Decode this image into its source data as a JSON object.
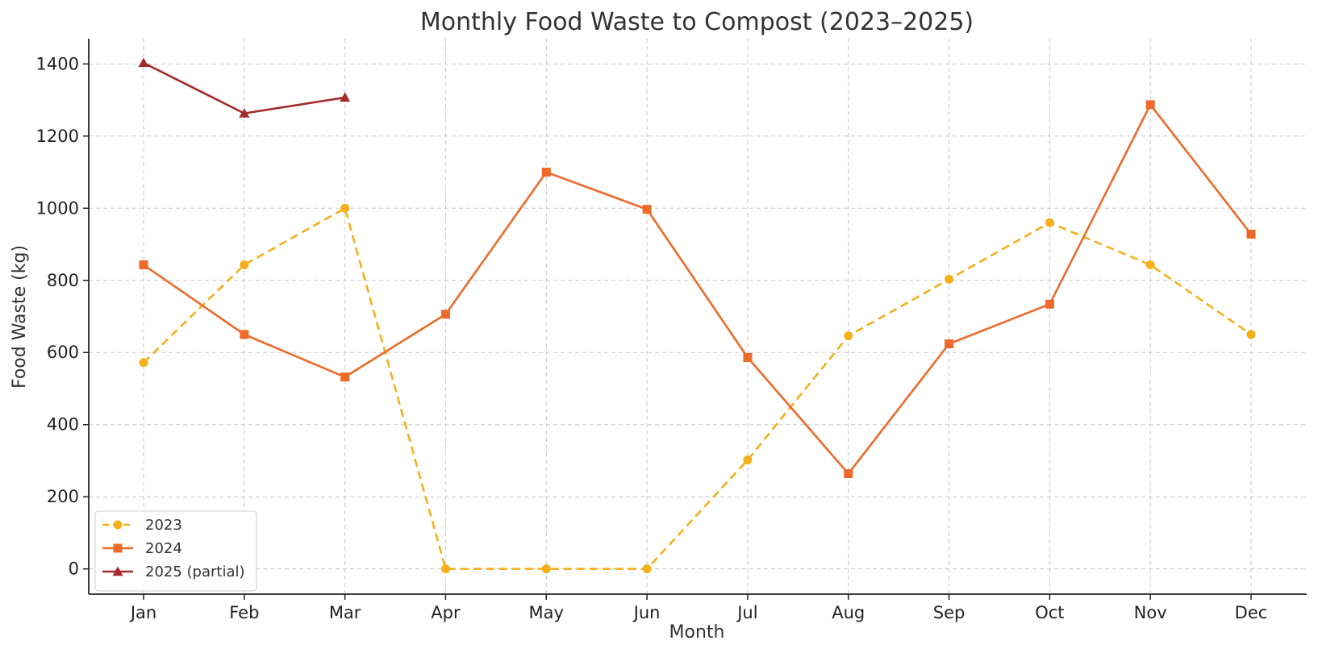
{
  "chart_data": {
    "type": "line",
    "title": "Monthly Food Waste to Compost (2023–2025)",
    "xlabel": "Month",
    "ylabel": "Food Waste (kg)",
    "categories": [
      "Jan",
      "Feb",
      "Mar",
      "Apr",
      "May",
      "Jun",
      "Jul",
      "Aug",
      "Sep",
      "Oct",
      "Nov",
      "Dec"
    ],
    "ylim": [
      -70,
      1470
    ],
    "yticks": [
      0,
      200,
      400,
      600,
      800,
      1000,
      1200,
      1400
    ],
    "grid": true,
    "legend_position": "bottom-left",
    "series": [
      {
        "name": "2023",
        "color": "#F5B01A",
        "line_style": "dashed",
        "marker": "circle",
        "values": [
          572,
          843,
          1000,
          0,
          0,
          0,
          302,
          646,
          803,
          960,
          843,
          650
        ]
      },
      {
        "name": "2024",
        "color": "#EE6A2A",
        "line_style": "solid",
        "marker": "square",
        "values": [
          843,
          650,
          532,
          706,
          1100,
          997,
          586,
          264,
          624,
          734,
          1287,
          928
        ]
      },
      {
        "name": "2025 (partial)",
        "color": "#A52A2A",
        "line_style": "solid",
        "marker": "triangle",
        "values": [
          1403,
          1263,
          1307,
          null,
          null,
          null,
          null,
          null,
          null,
          null,
          null,
          null
        ]
      }
    ]
  }
}
